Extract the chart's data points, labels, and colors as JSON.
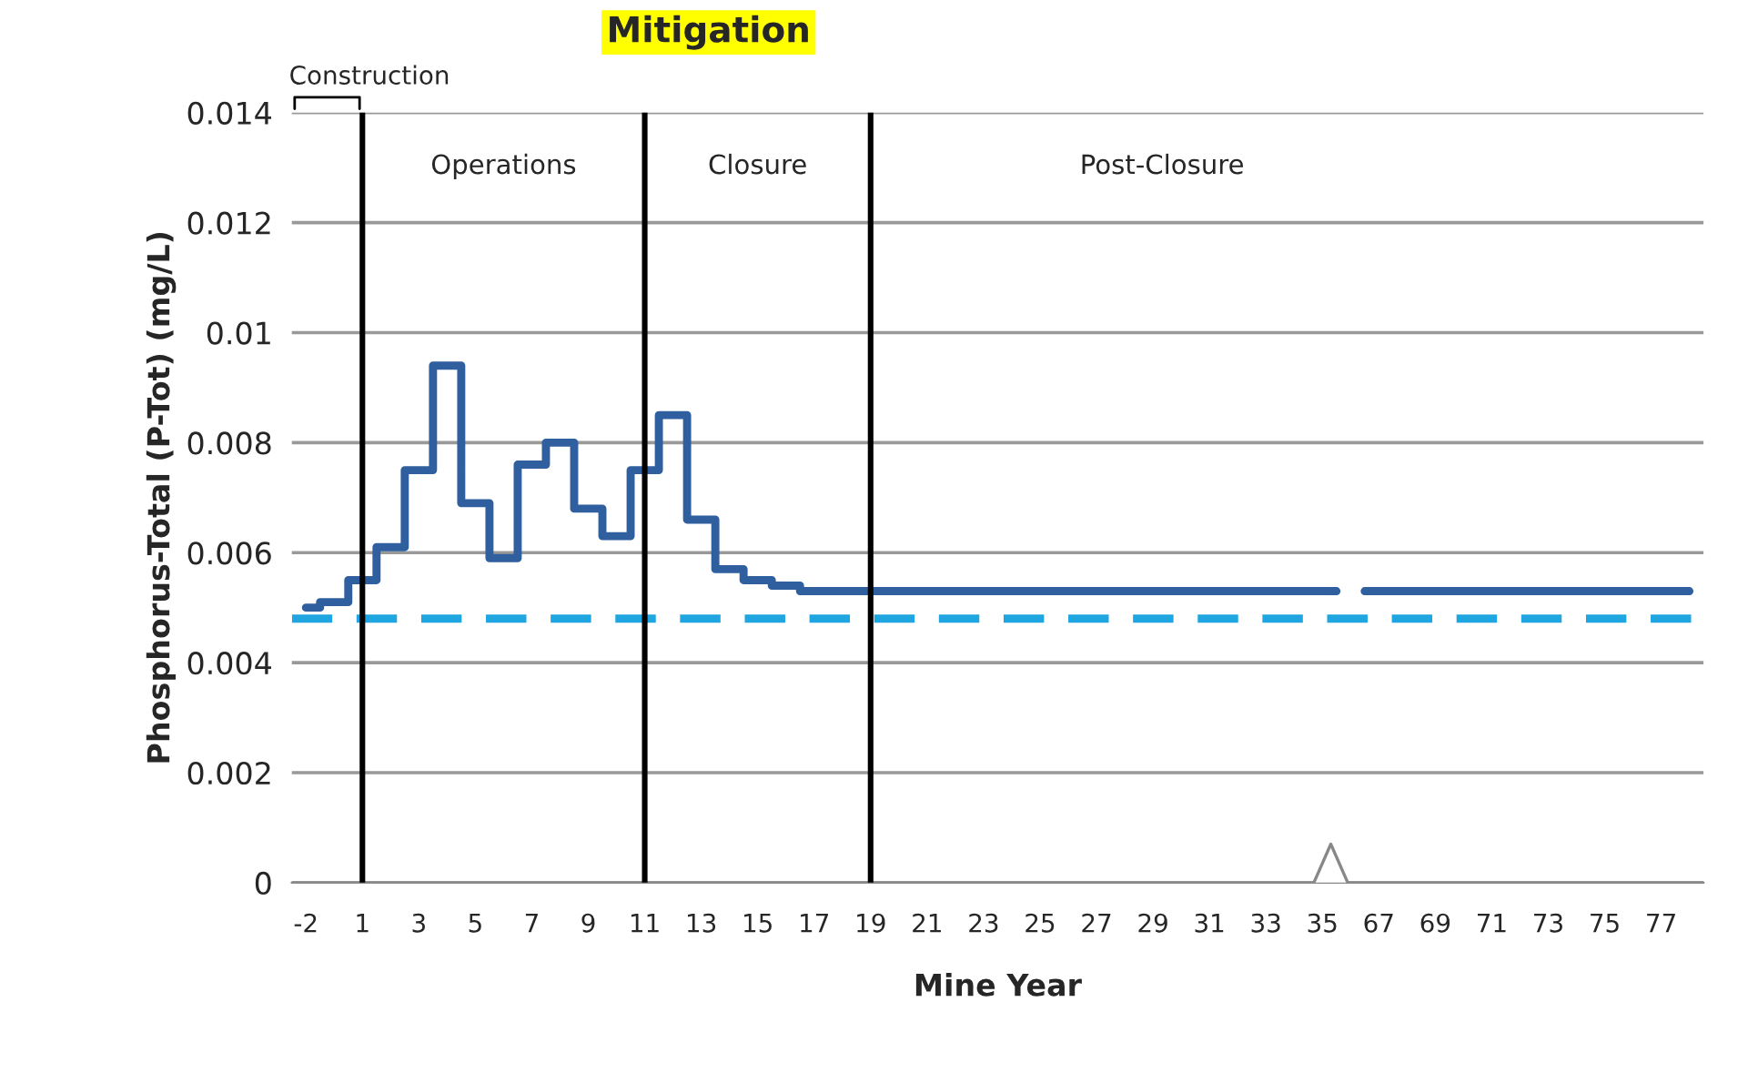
{
  "chart_data": {
    "type": "step",
    "title": "Mitigation",
    "xlabel": "Mine Year",
    "ylabel": "Phosphorus-Total (P-Tot) (mg/L)",
    "categories": [
      "-2",
      null,
      "1",
      null,
      "3",
      null,
      "5",
      null,
      "7",
      null,
      "9",
      null,
      "11",
      null,
      "13",
      null,
      "15",
      null,
      "17",
      null,
      "19",
      null,
      "21",
      null,
      "23",
      null,
      "25",
      null,
      "27",
      null,
      "29",
      null,
      "31",
      null,
      "33",
      null,
      "35",
      null,
      "67",
      null,
      "69",
      null,
      "71",
      null,
      "73",
      null,
      "75",
      null,
      "77",
      null
    ],
    "series": [
      {
        "color": "#2f5f9f",
        "values": [
          0.005,
          0.0051,
          0.0055,
          0.0061,
          0.0075,
          0.0094,
          0.0069,
          0.0059,
          0.0076,
          0.008,
          0.0068,
          0.0063,
          0.0075,
          0.0085,
          0.0066,
          0.0057,
          0.0055,
          0.0054,
          0.0053,
          0.0053,
          0.0053,
          0.0053,
          0.0053,
          0.0053,
          0.0053,
          0.0053,
          0.0053,
          0.0053,
          0.0053,
          0.0053,
          0.0053,
          0.0053,
          0.0053,
          0.0053,
          0.0053,
          0.0053,
          0.0053,
          null,
          0.0053,
          0.0053,
          0.0053,
          0.0053,
          0.0053,
          0.0053,
          0.0053,
          0.0053,
          0.0053,
          0.0053,
          0.0053,
          0.0053
        ]
      }
    ],
    "ref_lines": [
      {
        "axis": "y",
        "value": 0.0048,
        "color": "#1fa5e0",
        "line_style": "dashed"
      },
      {
        "axis": "x",
        "value": "1",
        "color": "#000000"
      },
      {
        "axis": "x",
        "value": "11",
        "color": "#000000"
      },
      {
        "axis": "x",
        "value": "19",
        "color": "#000000"
      }
    ],
    "annotations": [
      "Construction",
      "Operations",
      "Closure",
      "Post-Closure"
    ],
    "ylim": [
      0,
      0.014
    ],
    "yticks": [
      0,
      0.002,
      0.004,
      0.006,
      0.008,
      0.01,
      0.012,
      0.014
    ],
    "grid": "y",
    "legend": false
  }
}
